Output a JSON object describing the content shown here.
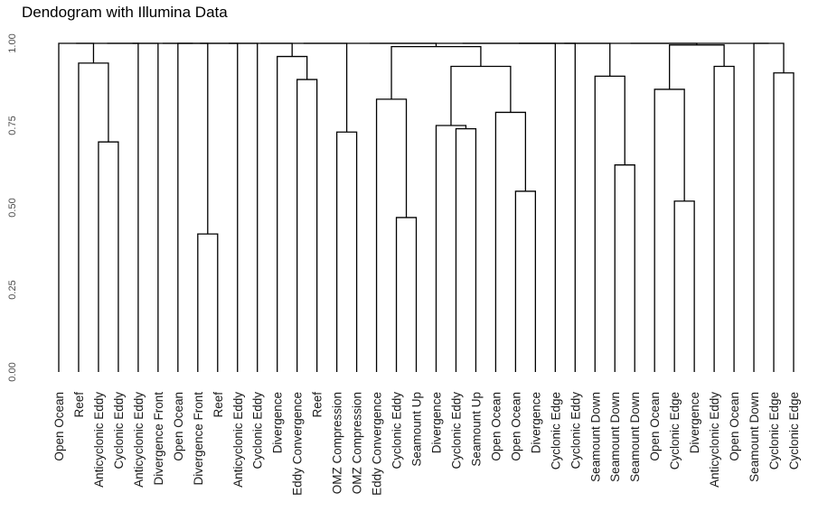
{
  "chart_data": {
    "type": "dendrogram",
    "title": "Dendogram with Illumina Data",
    "xlabel": "",
    "ylabel": "",
    "ylim": [
      0,
      1
    ],
    "grid": false,
    "y_ticks": [
      "0.00",
      "0.25",
      "0.50",
      "0.75",
      "1.00"
    ],
    "y_tick_values": [
      0,
      0.25,
      0.5,
      0.75,
      1.0
    ],
    "leaves": [
      "Open Ocean",
      "Reef",
      "Anticyclonic Eddy",
      "Cyclonic Eddy",
      "Anticyclonic Eddy",
      "Divergence Front",
      "Open Ocean",
      "Divergence Front",
      "Reef",
      "Anticyclonic Eddy",
      "Cyclonic Eddy",
      "Divergence",
      "Eddy Convergence",
      "Reef",
      "OMZ Compression",
      "OMZ Compression",
      "Eddy Convergence",
      "Cyclonic Eddy",
      "Seamount Up",
      "Divergence",
      "Cyclonic Eddy",
      "Seamount Up",
      "Open Ocean",
      "Open Ocean",
      "Divergence",
      "Cyclonic Edge",
      "Cyclonic Eddy",
      "Seamount Down",
      "Seamount Down",
      "Seamount Down",
      "Open Ocean",
      "Cyclonic Edge",
      "Divergence",
      "Anticyclonic Eddy",
      "Open Ocean",
      "Seamount Down",
      "Cyclonic Edge",
      "Cyclonic Edge"
    ],
    "merges": [
      {
        "a": 2,
        "b": 3,
        "height": 0.7
      },
      {
        "a": 1,
        "b": "m0",
        "height": 0.94
      },
      {
        "a": 0,
        "b": "m1",
        "height": 1.0
      },
      {
        "a": 7,
        "b": 8,
        "height": 0.42
      },
      {
        "a": 6,
        "b": "m3",
        "height": 1.0
      },
      {
        "a": 12,
        "b": 13,
        "height": 0.89
      },
      {
        "a": 11,
        "b": "m5",
        "height": 0.96
      },
      {
        "a": 14,
        "b": 15,
        "height": 0.73
      },
      {
        "a": 17,
        "b": 18,
        "height": 0.47
      },
      {
        "a": 16,
        "b": "m8",
        "height": 0.83
      },
      {
        "a": 20,
        "b": 21,
        "height": 0.74
      },
      {
        "a": 19,
        "b": "m10",
        "height": 0.75
      },
      {
        "a": 23,
        "b": 24,
        "height": 0.55
      },
      {
        "a": 22,
        "b": "m12",
        "height": 0.79
      },
      {
        "a": "m11",
        "b": "m13",
        "height": 0.93
      },
      {
        "a": "m9",
        "b": "m14",
        "height": 0.99
      },
      {
        "a": 28,
        "b": 29,
        "height": 0.63
      },
      {
        "a": 27,
        "b": "m16",
        "height": 0.9
      },
      {
        "a": 31,
        "b": 32,
        "height": 0.52
      },
      {
        "a": 30,
        "b": "m18",
        "height": 0.86
      },
      {
        "a": 33,
        "b": 34,
        "height": 0.93
      },
      {
        "a": "m19",
        "b": "m20",
        "height": 0.995
      },
      {
        "a": 36,
        "b": 37,
        "height": 0.91
      },
      {
        "a": 35,
        "b": "m22",
        "height": 1.0
      },
      {
        "a": "m2",
        "b": 4,
        "height": 1.0
      },
      {
        "a": "m24",
        "b": 5,
        "height": 1.0
      },
      {
        "a": "m25",
        "b": "m4",
        "height": 1.0
      },
      {
        "a": "m26",
        "b": 9,
        "height": 1.0
      },
      {
        "a": "m27",
        "b": 10,
        "height": 1.0
      },
      {
        "a": "m28",
        "b": "m6",
        "height": 1.0
      },
      {
        "a": "m29",
        "b": "m7",
        "height": 1.0
      },
      {
        "a": "m30",
        "b": "m15",
        "height": 1.0
      },
      {
        "a": "m31",
        "b": 25,
        "height": 1.0
      },
      {
        "a": "m32",
        "b": 26,
        "height": 1.0
      },
      {
        "a": "m33",
        "b": "m17",
        "height": 1.0
      },
      {
        "a": "m34",
        "b": "m21",
        "height": 1.0
      },
      {
        "a": "m35",
        "b": "m23",
        "height": 1.0
      }
    ]
  }
}
